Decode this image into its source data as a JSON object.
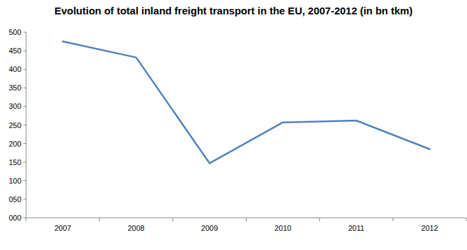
{
  "chart_data": {
    "type": "line",
    "title": "Evolution of total inland freight transport in the EU, 2007-2012 (in bn tkm)",
    "categories": [
      "2007",
      "2008",
      "2009",
      "2010",
      "2011",
      "2012"
    ],
    "values": [
      475,
      432,
      147,
      257,
      262,
      185
    ],
    "color": "#4f81bd",
    "ylim": [
      0,
      500
    ],
    "yticks": [
      {
        "value": 0,
        "label": "000"
      },
      {
        "value": 50,
        "label": "050"
      },
      100,
      150,
      200,
      250,
      300,
      350,
      400,
      450,
      500
    ],
    "grid": false
  }
}
